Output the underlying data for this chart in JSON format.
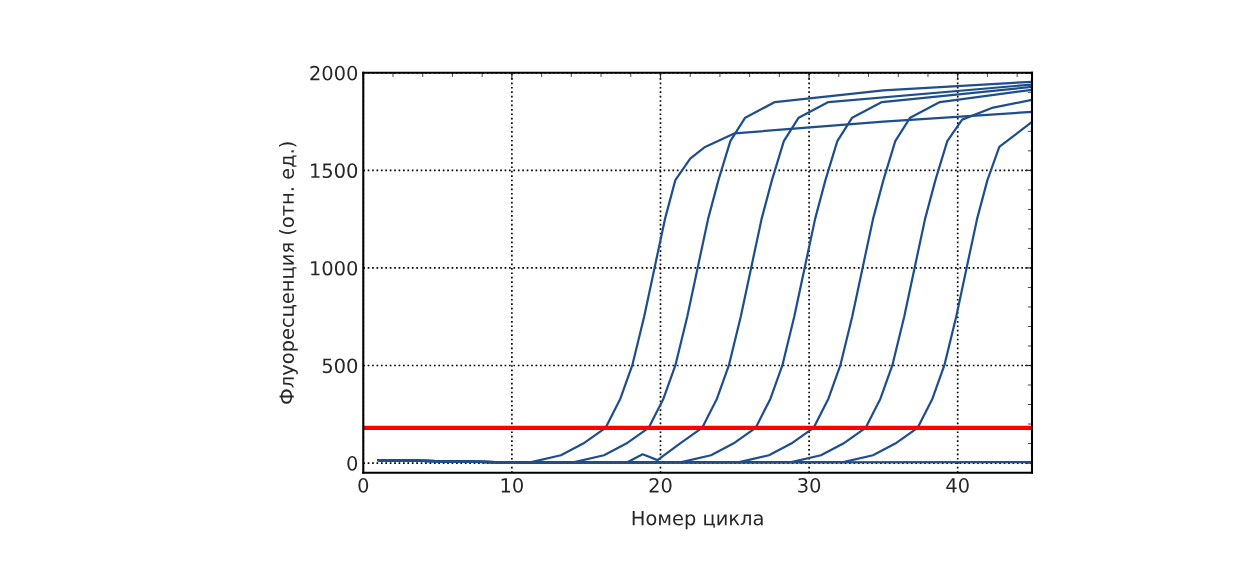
{
  "chart_data": {
    "type": "line",
    "xlabel": "Номер цикла",
    "ylabel": "Флуоресценция (отн. ед.)",
    "xlim": [
      0,
      45
    ],
    "xticks": [
      0,
      10,
      20,
      30,
      40
    ],
    "ylim": [
      -50,
      2000
    ],
    "yticks": [
      0,
      500,
      1000,
      1500,
      2000
    ],
    "grid": true,
    "legend": false,
    "marker": "none",
    "line_style": "solid",
    "ref_lines": [
      {
        "axis": "y",
        "value": 180,
        "color": "#ff0000",
        "line_style": "solid"
      }
    ],
    "series": [
      {
        "color": "#1f4e8c",
        "x": [
          1,
          10,
          11.3,
          13.3,
          14.8,
          16.3,
          17.3,
          18.1,
          18.9,
          19.6,
          20.3,
          21,
          22,
          23,
          25,
          35,
          45
        ],
        "values": [
          15,
          3,
          5,
          40,
          100,
          180,
          330,
          500,
          750,
          1000,
          1250,
          1450,
          1560,
          1620,
          1690,
          1750,
          1800
        ]
      },
      {
        "color": "#1f4e8c",
        "x": [
          1,
          10,
          14.2,
          16.2,
          17.7,
          19.2,
          20.2,
          21,
          21.8,
          22.5,
          23.2,
          23.9,
          24.7,
          25.7,
          27.7,
          35,
          45
        ],
        "values": [
          15,
          3,
          5,
          40,
          100,
          180,
          330,
          500,
          750,
          1000,
          1250,
          1450,
          1650,
          1770,
          1850,
          1910,
          1954
        ]
      },
      {
        "color": "#1f4e8c",
        "x": [
          1,
          10,
          17.8,
          18.8,
          19.8,
          21.3,
          22.8,
          23.8,
          24.6,
          25.4,
          26.1,
          26.8,
          27.5,
          28.3,
          29.3,
          31.3,
          45
        ],
        "values": [
          15,
          3,
          5,
          45,
          15,
          100,
          180,
          330,
          500,
          750,
          1000,
          1250,
          1450,
          1650,
          1770,
          1850,
          1940
        ]
      },
      {
        "color": "#1f4e8c",
        "x": [
          1,
          10,
          21.4,
          23.4,
          24.9,
          26.4,
          27.4,
          28.2,
          29,
          29.7,
          30.4,
          31.1,
          31.9,
          32.9,
          34.9,
          45
        ],
        "values": [
          15,
          3,
          5,
          40,
          100,
          180,
          330,
          500,
          750,
          1000,
          1250,
          1450,
          1650,
          1770,
          1850,
          1928
        ]
      },
      {
        "color": "#1f4e8c",
        "x": [
          1,
          10,
          25.3,
          27.3,
          28.8,
          30.3,
          31.3,
          32.1,
          32.9,
          33.6,
          34.3,
          35,
          35.8,
          36.8,
          38.8,
          45
        ],
        "values": [
          15,
          3,
          5,
          40,
          100,
          180,
          330,
          500,
          750,
          1000,
          1250,
          1450,
          1650,
          1770,
          1850,
          1913
        ]
      },
      {
        "color": "#1f4e8c",
        "x": [
          1,
          10,
          28.8,
          30.8,
          32.3,
          33.8,
          34.8,
          35.6,
          36.4,
          37.1,
          37.8,
          38.5,
          39.3,
          40.3,
          42.3,
          45
        ],
        "values": [
          15,
          3,
          5,
          40,
          100,
          180,
          330,
          500,
          750,
          1000,
          1250,
          1450,
          1650,
          1760,
          1820,
          1862
        ]
      },
      {
        "color": "#1f4e8c",
        "x": [
          1,
          10,
          32.3,
          34.3,
          35.8,
          37.3,
          38.3,
          39.1,
          39.9,
          40.6,
          41.3,
          42,
          42.8,
          45
        ],
        "values": [
          15,
          3,
          5,
          40,
          100,
          180,
          330,
          500,
          750,
          1000,
          1250,
          1450,
          1620,
          1749
        ]
      },
      {
        "color": "#1f4e8c",
        "x": [
          1,
          10,
          45
        ],
        "values": [
          15,
          2,
          5
        ]
      }
    ]
  }
}
